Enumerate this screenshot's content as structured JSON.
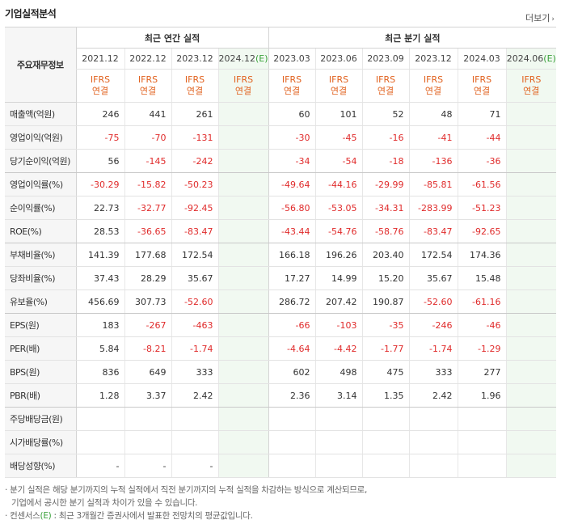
{
  "title": "기업실적분석",
  "more_label": "더보기",
  "row_header": "주요재무정보",
  "groups": {
    "annual": "최근 연간 실적",
    "quarter": "최근 분기 실적"
  },
  "annual_periods": [
    "2021.12",
    "2022.12",
    "2023.12",
    "2024.12"
  ],
  "quarter_periods": [
    "2023.03",
    "2023.06",
    "2023.09",
    "2023.12",
    "2024.03",
    "2024.06"
  ],
  "estimate_mark": "(E)",
  "standard": [
    "IFRS",
    "연결"
  ],
  "rows": [
    {
      "label": "매출액(억원)",
      "annual": [
        "246",
        "441",
        "261",
        ""
      ],
      "quarter": [
        "60",
        "101",
        "52",
        "48",
        "71",
        ""
      ]
    },
    {
      "label": "영업이익(억원)",
      "annual": [
        "-75",
        "-70",
        "-131",
        ""
      ],
      "quarter": [
        "-30",
        "-45",
        "-16",
        "-41",
        "-44",
        ""
      ]
    },
    {
      "label": "당기순이익(억원)",
      "annual": [
        "56",
        "-145",
        "-242",
        ""
      ],
      "quarter": [
        "-34",
        "-54",
        "-18",
        "-136",
        "-36",
        ""
      ]
    },
    {
      "label": "영업이익률(%)",
      "annual": [
        "-30.29",
        "-15.82",
        "-50.23",
        ""
      ],
      "quarter": [
        "-49.64",
        "-44.16",
        "-29.99",
        "-85.81",
        "-61.56",
        ""
      ]
    },
    {
      "label": "순이익률(%)",
      "annual": [
        "22.73",
        "-32.77",
        "-92.45",
        ""
      ],
      "quarter": [
        "-56.80",
        "-53.05",
        "-34.31",
        "-283.99",
        "-51.23",
        ""
      ]
    },
    {
      "label": "ROE(%)",
      "annual": [
        "28.53",
        "-36.65",
        "-83.47",
        ""
      ],
      "quarter": [
        "-43.44",
        "-54.76",
        "-58.76",
        "-83.47",
        "-92.65",
        ""
      ]
    },
    {
      "label": "부채비율(%)",
      "annual": [
        "141.39",
        "177.68",
        "172.54",
        ""
      ],
      "quarter": [
        "166.18",
        "196.26",
        "203.40",
        "172.54",
        "174.36",
        ""
      ]
    },
    {
      "label": "당좌비율(%)",
      "annual": [
        "37.43",
        "28.29",
        "35.67",
        ""
      ],
      "quarter": [
        "17.27",
        "14.99",
        "15.20",
        "35.67",
        "15.48",
        ""
      ]
    },
    {
      "label": "유보율(%)",
      "annual": [
        "456.69",
        "307.73",
        "-52.60",
        ""
      ],
      "quarter": [
        "286.72",
        "207.42",
        "190.87",
        "-52.60",
        "-61.16",
        ""
      ]
    },
    {
      "label": "EPS(원)",
      "annual": [
        "183",
        "-267",
        "-463",
        ""
      ],
      "quarter": [
        "-66",
        "-103",
        "-35",
        "-246",
        "-46",
        ""
      ]
    },
    {
      "label": "PER(배)",
      "annual": [
        "5.84",
        "-8.21",
        "-1.74",
        ""
      ],
      "quarter": [
        "-4.64",
        "-4.42",
        "-1.77",
        "-1.74",
        "-1.29",
        ""
      ]
    },
    {
      "label": "BPS(원)",
      "annual": [
        "836",
        "649",
        "333",
        ""
      ],
      "quarter": [
        "602",
        "498",
        "475",
        "333",
        "277",
        ""
      ]
    },
    {
      "label": "PBR(배)",
      "annual": [
        "1.28",
        "3.37",
        "2.42",
        ""
      ],
      "quarter": [
        "2.36",
        "3.14",
        "1.35",
        "2.42",
        "1.96",
        ""
      ]
    },
    {
      "label": "주당배당금(원)",
      "annual": [
        "",
        "",
        "",
        ""
      ],
      "quarter": [
        "",
        "",
        "",
        "",
        "",
        ""
      ]
    },
    {
      "label": "시가배당률(%)",
      "annual": [
        "",
        "",
        "",
        ""
      ],
      "quarter": [
        "",
        "",
        "",
        "",
        "",
        ""
      ]
    },
    {
      "label": "배당성향(%)",
      "annual": [
        "-",
        "-",
        "-",
        ""
      ],
      "quarter": [
        "",
        "",
        "",
        "",
        "",
        ""
      ]
    }
  ],
  "notes": [
    "분기 실적은 해당 분기까지의 누적 실적에서 직전 분기까지의 누적 실적을 차감하는 방식으로 계산되므로,",
    "기업에서 공시한 분기 실적과 차이가 있을 수 있습니다.",
    "컨센서스",
    ": 최근 3개월간 증권사에서 발표한 전망치의 평균값입니다."
  ],
  "colors": {
    "negative": "#e02b2b",
    "ifrs": "#e1621f",
    "estimate_bg": "#f1f9f1",
    "estimate_mark": "#39a13a",
    "label_bg": "#f6f6f6"
  }
}
